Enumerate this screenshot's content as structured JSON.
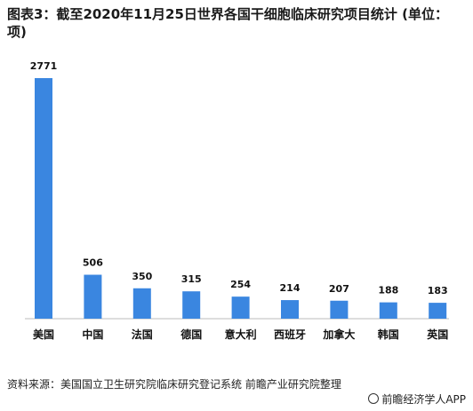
{
  "chart_data": {
    "type": "bar",
    "title": "图表3：截至2020年11月25日世界各国干细胞临床研究项目统计 (单位：项)",
    "categories": [
      "美国",
      "中国",
      "法国",
      "德国",
      "意大利",
      "西班牙",
      "加拿大",
      "韩国",
      "英国"
    ],
    "values": [
      2771,
      506,
      350,
      315,
      254,
      214,
      207,
      188,
      183
    ],
    "xlabel": "",
    "ylabel": "",
    "ylim": [
      0,
      2771
    ],
    "grid": false,
    "bar_color": "#3a86e0"
  },
  "footer": {
    "source": "资料来源：美国国立卫生研究院临床研究登记系统 前瞻产业研究院整理",
    "brand": "前瞻经济学人APP"
  }
}
